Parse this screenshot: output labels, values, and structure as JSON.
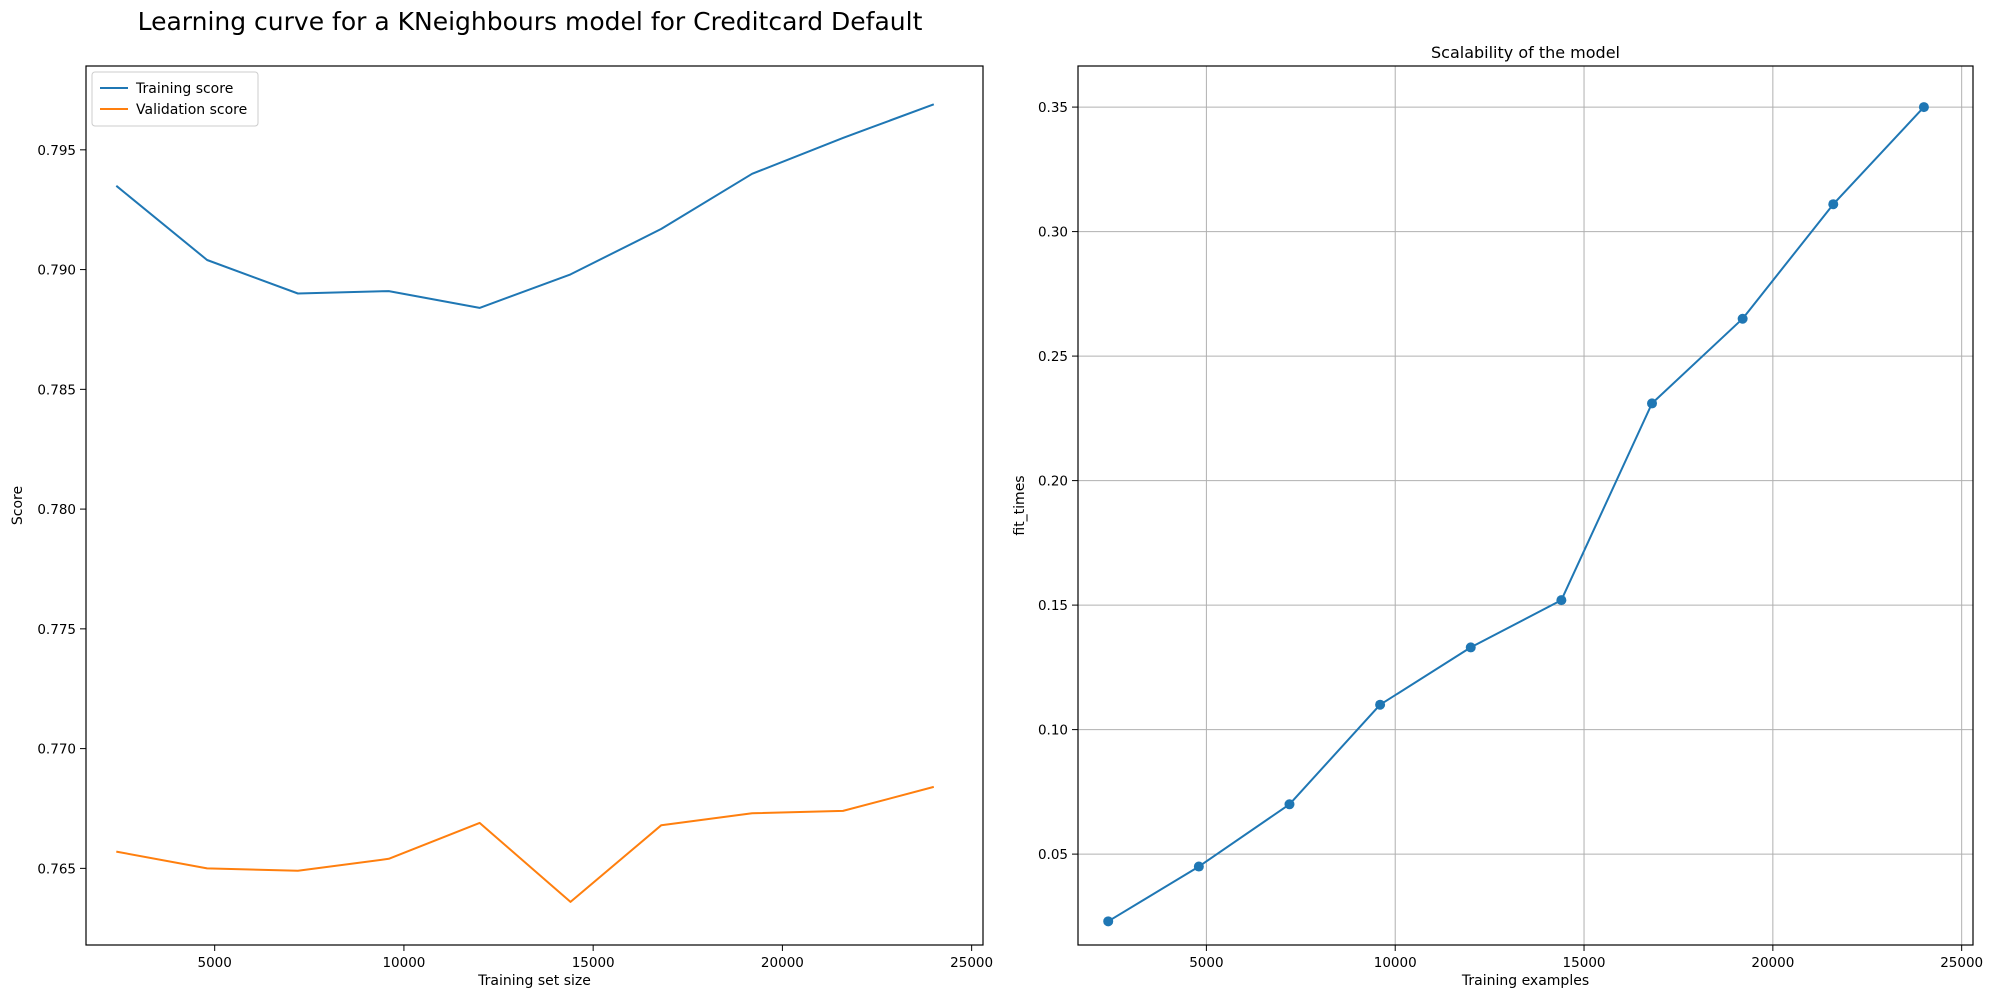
{
  "figure": {
    "suptitle": "Learning curve for a KNeighbours model for Creditcard Default"
  },
  "chart_data": [
    {
      "type": "line",
      "title": "",
      "xlabel": "Training set size",
      "ylabel": "Score",
      "x": [
        2400,
        4800,
        7200,
        9600,
        12000,
        14400,
        16800,
        19200,
        21600,
        24000
      ],
      "xlim": [
        1600,
        25300
      ],
      "ylim": [
        0.7618,
        0.7985
      ],
      "xticks": [
        5000,
        10000,
        15000,
        20000,
        25000
      ],
      "xtick_labels": [
        "5000",
        "10000",
        "15000",
        "20000",
        "25000"
      ],
      "yticks": [
        0.765,
        0.77,
        0.775,
        0.78,
        0.785,
        0.79,
        0.795
      ],
      "ytick_labels": [
        "0.765",
        "0.770",
        "0.775",
        "0.780",
        "0.785",
        "0.790",
        "0.795"
      ],
      "grid": false,
      "legend": "upper-left",
      "series": [
        {
          "name": "Training score",
          "color": "#1f77b4",
          "values": [
            0.7935,
            0.7904,
            0.789,
            0.7891,
            0.7884,
            0.7898,
            0.7917,
            0.794,
            0.7955,
            0.7969
          ]
        },
        {
          "name": "Validation score",
          "color": "#ff7f0e",
          "values": [
            0.7657,
            0.765,
            0.7649,
            0.7654,
            0.7669,
            0.7636,
            0.7668,
            0.7673,
            0.7674,
            0.7684
          ]
        }
      ]
    },
    {
      "type": "line",
      "title": "Scalability of the model",
      "xlabel": "Training examples",
      "ylabel": "fit_times",
      "x": [
        2400,
        4800,
        7200,
        9600,
        12000,
        14400,
        16800,
        19200,
        21600,
        24000
      ],
      "xlim": [
        1600,
        25300
      ],
      "ylim": [
        0.0135,
        0.3665
      ],
      "xticks": [
        5000,
        10000,
        15000,
        20000,
        25000
      ],
      "xtick_labels": [
        "5000",
        "10000",
        "15000",
        "20000",
        "25000"
      ],
      "yticks": [
        0.05,
        0.1,
        0.15,
        0.2,
        0.25,
        0.3,
        0.35
      ],
      "ytick_labels": [
        "0.05",
        "0.10",
        "0.15",
        "0.20",
        "0.25",
        "0.30",
        "0.35"
      ],
      "grid": true,
      "markers": true,
      "series": [
        {
          "color": "#1f77b4",
          "values": [
            0.023,
            0.045,
            0.07,
            0.11,
            0.133,
            0.152,
            0.231,
            0.265,
            0.311,
            0.35
          ]
        }
      ]
    }
  ]
}
